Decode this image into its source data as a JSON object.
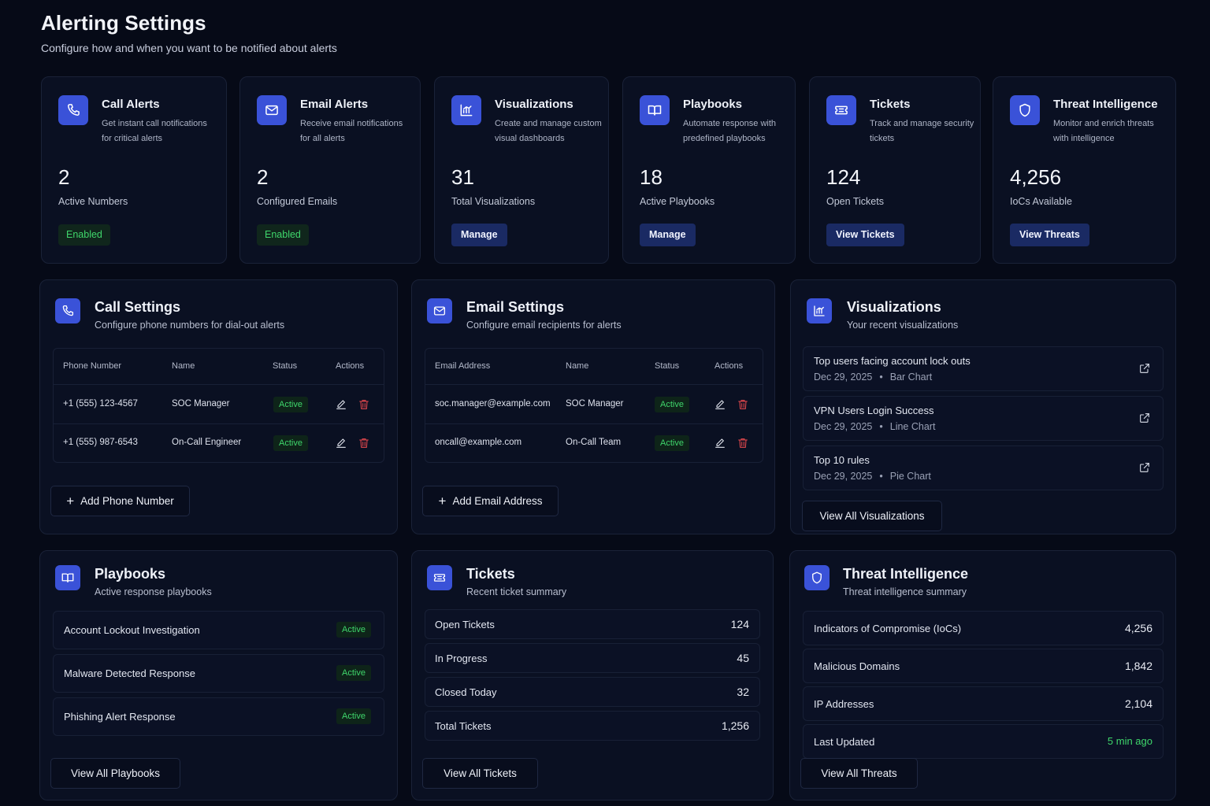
{
  "page": {
    "title": "Alerting Settings",
    "subtitle": "Configure how and when you want to be notified about alerts"
  },
  "summary_cards": [
    {
      "icon": "phone-icon",
      "title": "Call Alerts",
      "desc1": "Get instant call notifications",
      "desc2": "for critical alerts",
      "value": "2",
      "label": "Active Numbers",
      "action": "Enabled",
      "action_type": "badge"
    },
    {
      "icon": "mail-icon",
      "title": "Email Alerts",
      "desc1": "Receive email notifications",
      "desc2": "for all alerts",
      "value": "2",
      "label": "Configured Emails",
      "action": "Enabled",
      "action_type": "badge"
    },
    {
      "icon": "chart-icon",
      "title": "Visualizations",
      "desc1": "Create and manage custom",
      "desc2": "visual dashboards",
      "value": "31",
      "label": "Total Visualizations",
      "action": "Manage",
      "action_type": "button"
    },
    {
      "icon": "book-icon",
      "title": "Playbooks",
      "desc1": "Automate response with",
      "desc2": "predefined playbooks",
      "value": "18",
      "label": "Active Playbooks",
      "action": "Manage",
      "action_type": "button"
    },
    {
      "icon": "ticket-icon",
      "title": "Tickets",
      "desc1": "Track and manage security",
      "desc2": "tickets",
      "value": "124",
      "label": "Open Tickets",
      "action": "View Tickets",
      "action_type": "button"
    },
    {
      "icon": "shield-icon",
      "title": "Threat Intelligence",
      "desc1": "Monitor and enrich threats",
      "desc2": "with intelligence",
      "value": "4,256",
      "label": "IoCs Available",
      "action": "View Threats",
      "action_type": "button"
    }
  ],
  "call_settings": {
    "title": "Call Settings",
    "subtitle": "Configure phone numbers for dial-out alerts",
    "headers": [
      "Phone Number",
      "Name",
      "Status",
      "Actions"
    ],
    "rows": [
      {
        "phone": "+1 (555) 123-4567",
        "name": "SOC Manager",
        "status": "Active"
      },
      {
        "phone": "+1 (555) 987-6543",
        "name": "On-Call Engineer",
        "status": "Active"
      }
    ],
    "add_label": "Add Phone Number"
  },
  "email_settings": {
    "title": "Email Settings",
    "subtitle": "Configure email recipients for alerts",
    "headers": [
      "Email Address",
      "Name",
      "Status",
      "Actions"
    ],
    "rows": [
      {
        "email": "soc.manager@example.com",
        "name": "SOC Manager",
        "status": "Active"
      },
      {
        "email": "oncall@example.com",
        "name": "On-Call Team",
        "status": "Active"
      }
    ],
    "add_label": "Add Email Address"
  },
  "visualizations": {
    "title": "Visualizations",
    "subtitle": "Your recent visualizations",
    "items": [
      {
        "name": "Top users facing account lock outs",
        "date": "Dec 29, 2025",
        "type": "Bar Chart"
      },
      {
        "name": "VPN Users Login Success",
        "date": "Dec 29, 2025",
        "type": "Line Chart"
      },
      {
        "name": "Top 10 rules",
        "date": "Dec 29, 2025",
        "type": "Pie Chart"
      }
    ],
    "separator": "•",
    "view_all": "View All Visualizations"
  },
  "playbooks": {
    "title": "Playbooks",
    "subtitle": "Active response playbooks",
    "items": [
      {
        "name": "Account Lockout Investigation",
        "status": "Active"
      },
      {
        "name": "Malware Detected Response",
        "status": "Active"
      },
      {
        "name": "Phishing Alert Response",
        "status": "Active"
      }
    ],
    "view_all": "View All Playbooks"
  },
  "tickets": {
    "title": "Tickets",
    "subtitle": "Recent ticket summary",
    "items": [
      {
        "label": "Open Tickets",
        "value": "124"
      },
      {
        "label": "In Progress",
        "value": "45"
      },
      {
        "label": "Closed Today",
        "value": "32"
      },
      {
        "label": "Total Tickets",
        "value": "1,256"
      }
    ],
    "view_all": "View All Tickets"
  },
  "threat_intel": {
    "title": "Threat Intelligence",
    "subtitle": "Threat intelligence summary",
    "items": [
      {
        "label": "Indicators of Compromise (IoCs)",
        "value": "4,256"
      },
      {
        "label": "Malicious Domains",
        "value": "1,842"
      },
      {
        "label": "IP Addresses",
        "value": "2,104"
      },
      {
        "label": "Last Updated",
        "value": "5 min ago"
      }
    ],
    "view_all": "View All Threats"
  },
  "colors": {
    "background": "#060a17",
    "card": "#0a1022",
    "accent": "#3a52d8",
    "button": "#1a2a63",
    "success": "#3fd66b",
    "danger": "#e5484d"
  }
}
